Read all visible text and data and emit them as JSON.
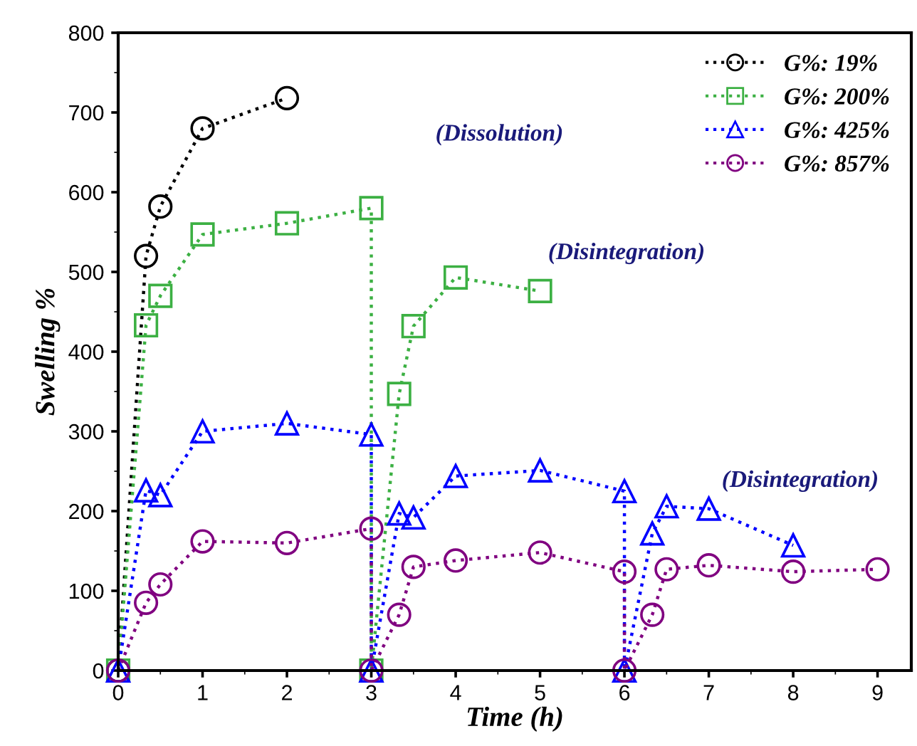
{
  "chart_data": {
    "type": "line",
    "xlabel": "Time (h)",
    "ylabel": "Swelling %",
    "xlim": [
      0,
      9.4
    ],
    "xticks": [
      0,
      1,
      2,
      3,
      4,
      5,
      6,
      7,
      8,
      9
    ],
    "ylim": [
      0,
      800
    ],
    "yticks": [
      0,
      100,
      200,
      300,
      400,
      500,
      600,
      700,
      800
    ],
    "grid": false,
    "legend": "top right",
    "line_style": "dotted",
    "series": [
      {
        "name": "G%: 19%",
        "color": "#000000",
        "marker": "circle",
        "x": [
          0,
          0.33,
          0.5,
          1,
          2
        ],
        "values": [
          0,
          520,
          582,
          680,
          718
        ]
      },
      {
        "name": "G%: 200%",
        "color": "#3cb043",
        "marker": "square",
        "x": [
          0,
          0.33,
          0.5,
          1,
          2,
          3,
          3,
          3.33,
          3.5,
          4,
          5
        ],
        "values": [
          0,
          433,
          470,
          547,
          561,
          580,
          0,
          347,
          432,
          493,
          476
        ]
      },
      {
        "name": "G%: 425%",
        "color": "#0000ff",
        "marker": "triangle",
        "x": [
          0,
          0.33,
          0.5,
          1,
          2,
          3,
          3,
          3.33,
          3.5,
          4,
          5,
          6,
          6,
          6.33,
          6.5,
          7,
          8
        ],
        "values": [
          0,
          226,
          220,
          300,
          310,
          296,
          0,
          197,
          192,
          244,
          251,
          225,
          0,
          172,
          206,
          203,
          157
        ]
      },
      {
        "name": "G%: 857%",
        "color": "#800080",
        "marker": "circle",
        "x": [
          0,
          0.33,
          0.5,
          1,
          2,
          3,
          3,
          3.33,
          3.5,
          4,
          5,
          6,
          6,
          6.33,
          6.5,
          7,
          8,
          9
        ],
        "values": [
          0,
          85,
          108,
          162,
          160,
          178,
          0,
          70,
          130,
          138,
          148,
          124,
          0,
          70,
          127,
          132,
          124,
          127
        ]
      }
    ],
    "annotations": [
      "(Dissolution)",
      "(Disintegration)",
      "(Disintegration)"
    ]
  }
}
